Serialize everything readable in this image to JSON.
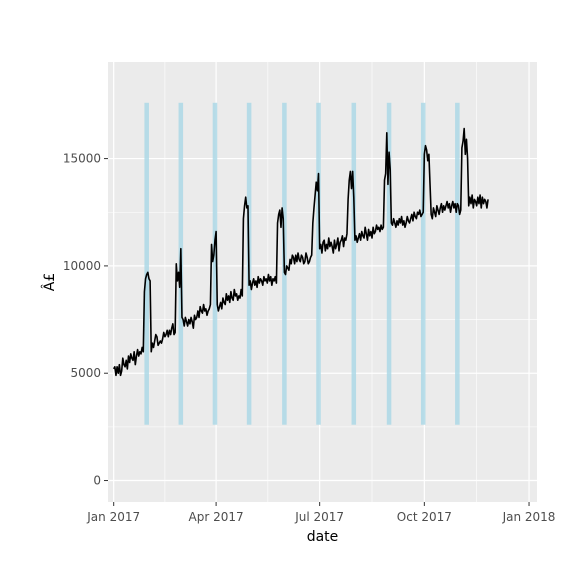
{
  "chart_data": {
    "type": "line",
    "title": "",
    "xlabel": "date",
    "ylabel": "Â£",
    "xlim": [
      "2016-12-27",
      "2018-01-08"
    ],
    "ylim": [
      -1000,
      19500
    ],
    "x_ticks": [
      {
        "date": "2017-01-01",
        "label": "Jan 2017"
      },
      {
        "date": "2017-04-01",
        "label": "Apr 2017"
      },
      {
        "date": "2017-07-01",
        "label": "Jul 2017"
      },
      {
        "date": "2017-10-01",
        "label": "Oct 2017"
      },
      {
        "date": "2018-01-01",
        "label": "Jan 2018"
      }
    ],
    "y_ticks": [
      {
        "value": 0,
        "label": "0"
      },
      {
        "value": 5000,
        "label": "5000"
      },
      {
        "value": 10000,
        "label": "10000"
      },
      {
        "value": 15000,
        "label": "15000"
      }
    ],
    "grid": true,
    "colors": {
      "panel_background": "#ebebeb",
      "grid": "#ffffff",
      "line": "#000000",
      "band": "#add8e6",
      "tick_text": "#4d4d4d",
      "tick_mark": "#333333"
    },
    "highlight_bands": {
      "y_range": [
        2600,
        17600
      ],
      "periods": [
        [
          "2017-01-28",
          "2017-02-01"
        ],
        [
          "2017-02-27",
          "2017-03-03"
        ],
        [
          "2017-03-29",
          "2017-04-02"
        ],
        [
          "2017-04-28",
          "2017-05-02"
        ],
        [
          "2017-05-29",
          "2017-06-02"
        ],
        [
          "2017-06-28",
          "2017-07-02"
        ],
        [
          "2017-07-29",
          "2017-08-02"
        ],
        [
          "2017-08-29",
          "2017-09-02"
        ],
        [
          "2017-09-28",
          "2017-10-02"
        ],
        [
          "2017-10-28",
          "2017-11-01"
        ]
      ]
    },
    "series": [
      {
        "start_date": "2017-01-01",
        "end_date": "2017-11-19",
        "values": [
          5200,
          5300,
          4900,
          5300,
          5000,
          5400,
          4900,
          5100,
          5700,
          5400,
          5300,
          5600,
          5200,
          5800,
          5500,
          5900,
          5700,
          5600,
          6000,
          5400,
          5800,
          6100,
          5800,
          6000,
          5900,
          6200,
          6000,
          8800,
          9400,
          9600,
          9700,
          9400,
          9300,
          6000,
          6400,
          6200,
          6500,
          6800,
          6700,
          6300,
          6400,
          6500,
          6400,
          6600,
          6900,
          6700,
          6800,
          7000,
          6700,
          7000,
          6800,
          7100,
          7300,
          6800,
          6900,
          10100,
          9300,
          9700,
          9000,
          10800,
          7600,
          7500,
          7200,
          7600,
          7400,
          7200,
          7500,
          7300,
          7600,
          7400,
          7100,
          7700,
          7500,
          7600,
          7900,
          7600,
          8100,
          7900,
          7800,
          8200,
          7900,
          8000,
          7700,
          7900,
          8000,
          8200,
          11000,
          10200,
          10500,
          11200,
          11600,
          8200,
          7900,
          8100,
          8300,
          8000,
          8500,
          8300,
          8200,
          8700,
          8400,
          8600,
          8300,
          8800,
          8500,
          8400,
          8900,
          8600,
          8700,
          8400,
          8600,
          8500,
          8900,
          8600,
          12200,
          12800,
          13200,
          12700,
          12800,
          9100,
          9300,
          8900,
          9200,
          9400,
          9100,
          9300,
          9000,
          9500,
          9200,
          9400,
          9300,
          9100,
          9500,
          9300,
          9400,
          9200,
          9600,
          9300,
          9500,
          9100,
          9400,
          9300,
          9500,
          9200,
          12000,
          12400,
          12600,
          11800,
          12700,
          12200,
          9700,
          9600,
          10000,
          9900,
          9800,
          10300,
          10100,
          10500,
          10400,
          10100,
          10500,
          10200,
          10600,
          10300,
          10200,
          10500,
          10400,
          10100,
          10200,
          10600,
          10400,
          10100,
          10200,
          10400,
          10500,
          12000,
          12700,
          13300,
          13900,
          13500,
          14300,
          10800,
          11000,
          10600,
          11100,
          11200,
          10700,
          11000,
          10800,
          11300,
          10900,
          11100,
          10900,
          10600,
          11200,
          10800,
          11000,
          11300,
          10700,
          11100,
          11200,
          11400,
          10900,
          11300,
          11200,
          11500,
          13100,
          14000,
          14400,
          13600,
          14400,
          13200,
          11200,
          11400,
          11100,
          11300,
          11500,
          11200,
          11600,
          11400,
          11300,
          11800,
          11500,
          11200,
          11700,
          11400,
          11600,
          11300,
          11800,
          11500,
          11600,
          11900,
          11700,
          11800,
          11600,
          11900,
          11700,
          11800,
          14000,
          14300,
          16200,
          13800,
          15300,
          14500,
          12000,
          11900,
          12200,
          12000,
          11800,
          12100,
          11900,
          12200,
          12000,
          12300,
          11900,
          12100,
          11800,
          12000,
          12300,
          12100,
          12000,
          12200,
          12400,
          12100,
          12500,
          12300,
          12200,
          12500,
          12400,
          12600,
          12300,
          12400,
          12500,
          15200,
          15600,
          15400,
          14900,
          15200,
          13800,
          12400,
          12200,
          12700,
          12500,
          12300,
          12800,
          12600,
          12400,
          12700,
          12900,
          12500,
          12800,
          12600,
          12800,
          13000,
          12700,
          12900,
          12500,
          12800,
          13000,
          12700,
          12900,
          12500,
          12900,
          12800,
          12400,
          12600,
          15500,
          15800,
          16400,
          15200,
          15900,
          15000,
          12800,
          13200,
          12900,
          13300,
          12700,
          13100,
          13000,
          12800,
          13200,
          12900,
          13300,
          12700,
          13200,
          12900,
          13100,
          13000,
          12700,
          13100
        ]
      }
    ]
  }
}
